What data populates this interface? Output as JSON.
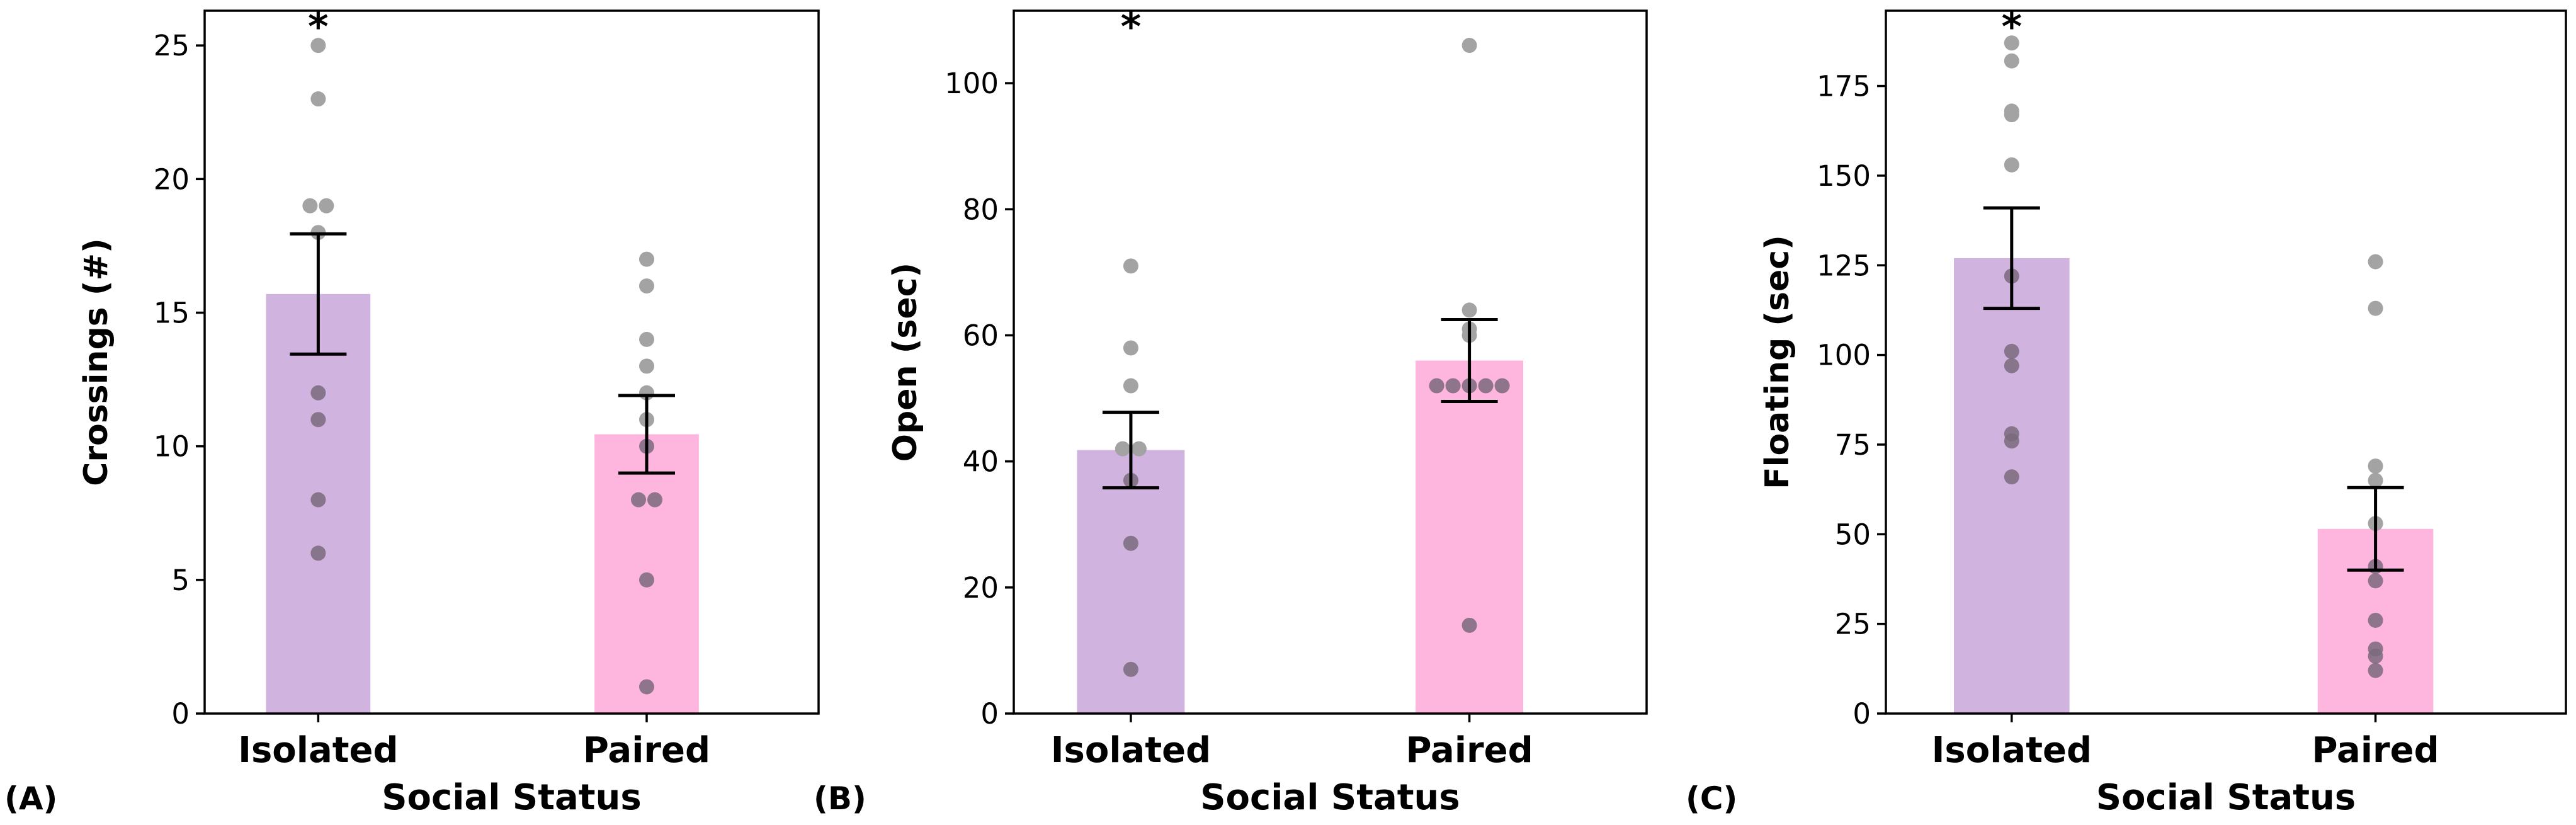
{
  "figure": {
    "panels": [
      "(A)",
      "(B)",
      "(C)"
    ]
  },
  "chart_data": [
    {
      "type": "bar",
      "panel_label": "(A)",
      "xlabel": "Social Status",
      "ylabel": "Crossings (#)",
      "categories": [
        "Isolated",
        "Paired"
      ],
      "values": [
        15.7,
        10.45
      ],
      "error": [
        2.25,
        1.45
      ],
      "colors": [
        "#d1b3e0",
        "#ffb6de"
      ],
      "points": [
        [
          25,
          23,
          19,
          19,
          18,
          12,
          11,
          8,
          6
        ],
        [
          17,
          16,
          14,
          13,
          12,
          11,
          10,
          8,
          8,
          5,
          1
        ]
      ],
      "significance": [
        "*",
        ""
      ],
      "ylim": [
        0,
        26.3
      ],
      "yticks": [
        0,
        5,
        10,
        15,
        20,
        25
      ]
    },
    {
      "type": "bar",
      "panel_label": "(B)",
      "xlabel": "Social Status",
      "ylabel": "Open (sec)",
      "categories": [
        "Isolated",
        "Paired"
      ],
      "values": [
        41.8,
        56
      ],
      "error": [
        6,
        6.5
      ],
      "colors": [
        "#d1b3e0",
        "#ffb6de"
      ],
      "points": [
        [
          71,
          58,
          52,
          42,
          42,
          37,
          27,
          7
        ],
        [
          106,
          64,
          61,
          60,
          52,
          52,
          52,
          52,
          52,
          14
        ]
      ],
      "significance": [
        "*",
        ""
      ],
      "ylim": [
        0,
        111.5
      ],
      "yticks": [
        0,
        20,
        40,
        60,
        80,
        100
      ]
    },
    {
      "type": "bar",
      "panel_label": "(C)",
      "xlabel": "Social Status",
      "ylabel": "Floating (sec)",
      "categories": [
        "Isolated",
        "Paired"
      ],
      "values": [
        127,
        51.5
      ],
      "error": [
        14,
        11.5
      ],
      "colors": [
        "#d1b3e0",
        "#ffb6de"
      ],
      "points": [
        [
          187,
          182,
          168,
          167,
          153,
          122,
          101,
          97,
          78,
          76,
          66
        ],
        [
          126,
          113,
          69,
          65,
          53,
          41,
          37,
          26,
          18,
          16,
          12
        ]
      ],
      "significance": [
        "*",
        ""
      ],
      "ylim": [
        0,
        196
      ],
      "yticks": [
        0,
        25,
        50,
        75,
        100,
        125,
        150,
        175
      ]
    }
  ]
}
